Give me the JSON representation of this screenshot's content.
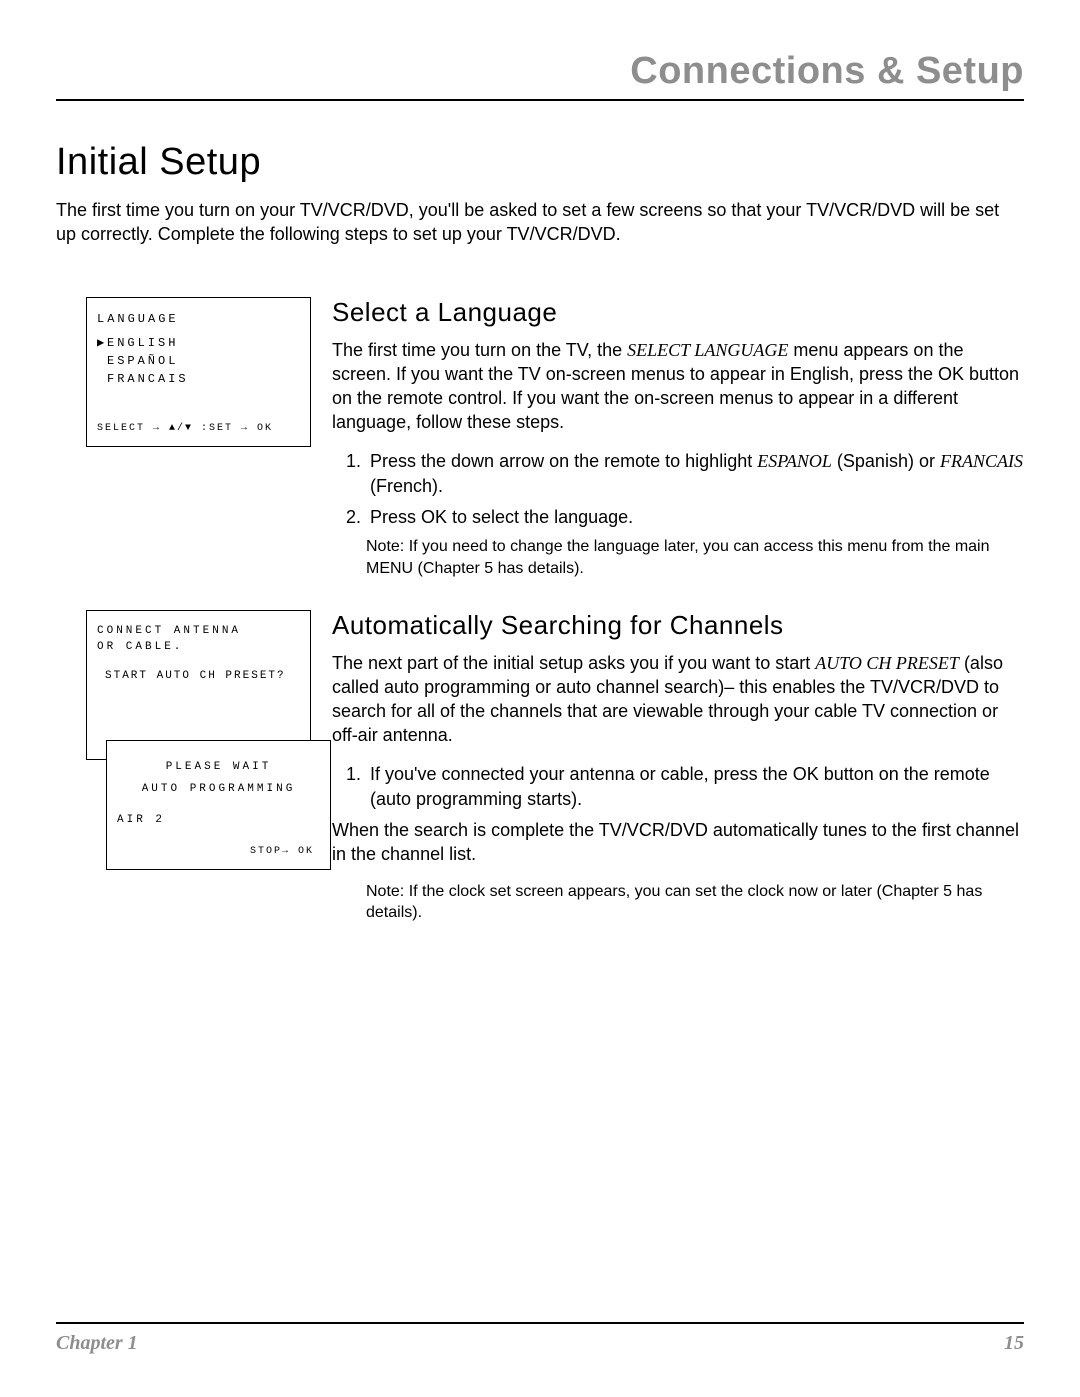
{
  "header": {
    "title": "Connections & Setup"
  },
  "main": {
    "h1": "Initial Setup",
    "intro": "The first time you turn on your TV/VCR/DVD, you'll be asked to set a few screens so that your TV/VCR/DVD will be set up correctly. Complete the following steps to set up your TV/VCR/DVD."
  },
  "osd1": {
    "title": "LANGUAGE",
    "items": [
      "ENGLISH",
      "ESPAÑOL",
      "FRANCAIS"
    ],
    "selected_marker": "▶",
    "select_line": "SELECT → ▲/▼ :SET → OK"
  },
  "section1": {
    "h2": "Select a Language",
    "p1a": "The first time you turn on the TV, the ",
    "p1_em": "SELECT LANGUAGE",
    "p1b": " menu appears on the screen. If you want the TV on-screen menus to appear in English, press the OK button on the remote control. If you want the on-screen menus to appear in a different language, follow these steps.",
    "li1a": "Press the down arrow on the remote to highlight ",
    "li1_em1": "ESPANOL",
    "li1b": " (Spanish) or ",
    "li1_em2": "FRANCAIS",
    "li1c": " (French).",
    "li2": "Press OK to select the language.",
    "note": "Note:  If you need to change the language later, you can access this menu from the main MENU (Chapter 5 has details)."
  },
  "osd2": {
    "back_line1": "CONNECT ANTENNA",
    "back_line2": "OR CABLE.",
    "back_line3": "START AUTO CH PRESET?",
    "front_line1": "PLEASE WAIT",
    "front_line2": "AUTO PROGRAMMING",
    "front_air": "AIR 2",
    "front_stop": "STOP→ OK"
  },
  "section2": {
    "h2": "Automatically Searching for Channels",
    "p1a": "The next part of the initial setup asks you if you want to start ",
    "p1_em": "AUTO CH PRESET",
    "p1b": " (also called auto programming or auto channel search)– this enables the TV/VCR/DVD to search for all of the channels that are viewable through your cable TV connection or off-air antenna.",
    "li1": "If you've connected your antenna or cable, press the OK button on the remote (auto programming starts).",
    "p2": "When the search is complete the TV/VCR/DVD automatically tunes to the first channel in the channel list.",
    "note": "Note:  If the clock set screen appears, you can set the clock now or later (Chapter 5 has details)."
  },
  "footer": {
    "chapter": "Chapter 1",
    "page": "15"
  },
  "colors": {
    "header_gray": "#8e8e8e",
    "text": "#000000",
    "bg": "#ffffff"
  }
}
